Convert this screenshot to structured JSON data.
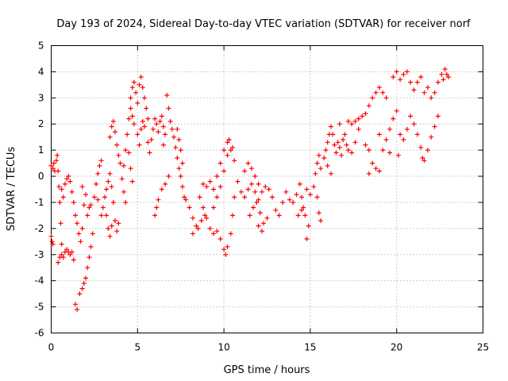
{
  "chart_data": {
    "type": "scatter",
    "title": "Day 193 of 2024, Sidereal Day-to-day VTEC variation (SDTVAR) for receiver norf",
    "xlabel": "GPS time / hours",
    "ylabel": "SDTVAR / TECUs",
    "xlim": [
      0,
      25
    ],
    "ylim": [
      -6,
      5
    ],
    "xticks": [
      0,
      5,
      10,
      15,
      20,
      25
    ],
    "yticks": [
      -6,
      -5,
      -4,
      -3,
      -2,
      -1,
      0,
      1,
      2,
      3,
      4,
      5
    ],
    "grid": true,
    "marker": "plus",
    "marker_color": "#ff0000",
    "series": [
      {
        "name": "norf",
        "points": [
          [
            0.0,
            -2.3
          ],
          [
            0.05,
            -2.5
          ],
          [
            0.1,
            -2.6
          ],
          [
            0.0,
            0.4
          ],
          [
            0.1,
            0.3
          ],
          [
            0.15,
            0.5
          ],
          [
            0.2,
            0.2
          ],
          [
            0.3,
            0.6
          ],
          [
            0.35,
            0.8
          ],
          [
            0.4,
            0.2
          ],
          [
            0.45,
            -0.4
          ],
          [
            0.5,
            -1.0
          ],
          [
            0.55,
            -1.8
          ],
          [
            0.6,
            -2.6
          ],
          [
            0.4,
            -3.3
          ],
          [
            0.5,
            -3.1
          ],
          [
            0.6,
            -3.0
          ],
          [
            0.7,
            -3.1
          ],
          [
            0.8,
            -2.9
          ],
          [
            0.9,
            -2.8
          ],
          [
            1.0,
            -2.9
          ],
          [
            1.1,
            -3.0
          ],
          [
            1.2,
            -2.9
          ],
          [
            1.3,
            -3.2
          ],
          [
            0.6,
            -0.5
          ],
          [
            0.7,
            -0.8
          ],
          [
            0.8,
            -0.3
          ],
          [
            0.9,
            -0.1
          ],
          [
            1.0,
            0.0
          ],
          [
            1.1,
            -0.2
          ],
          [
            1.2,
            -0.6
          ],
          [
            1.3,
            -1.0
          ],
          [
            1.4,
            -1.5
          ],
          [
            1.5,
            -1.8
          ],
          [
            1.6,
            -2.2
          ],
          [
            1.7,
            -2.5
          ],
          [
            1.8,
            -2.0
          ],
          [
            1.4,
            -4.9
          ],
          [
            1.5,
            -5.1
          ],
          [
            1.65,
            -4.5
          ],
          [
            1.8,
            -4.3
          ],
          [
            1.9,
            -4.1
          ],
          [
            2.0,
            -3.9
          ],
          [
            2.1,
            -3.5
          ],
          [
            2.2,
            -3.1
          ],
          [
            2.3,
            -2.7
          ],
          [
            2.4,
            -2.2
          ],
          [
            2.2,
            -1.2
          ],
          [
            2.0,
            -0.7
          ],
          [
            1.8,
            -0.4
          ],
          [
            1.9,
            -1.1
          ],
          [
            2.1,
            -1.5
          ],
          [
            2.3,
            -1.1
          ],
          [
            2.5,
            -0.8
          ],
          [
            2.6,
            -0.3
          ],
          [
            2.7,
            0.1
          ],
          [
            2.8,
            0.4
          ],
          [
            2.9,
            0.6
          ],
          [
            2.7,
            -0.9
          ],
          [
            2.9,
            -1.5
          ],
          [
            3.0,
            -1.2
          ],
          [
            3.1,
            -0.8
          ],
          [
            3.2,
            -0.5
          ],
          [
            3.3,
            -0.2
          ],
          [
            3.4,
            0.1
          ],
          [
            3.5,
            -0.4
          ],
          [
            3.6,
            -1.0
          ],
          [
            3.7,
            -1.7
          ],
          [
            3.8,
            -2.1
          ],
          [
            3.9,
            -1.8
          ],
          [
            3.2,
            -1.5
          ],
          [
            3.3,
            -2.0
          ],
          [
            3.4,
            -2.3
          ],
          [
            3.5,
            -1.9
          ],
          [
            3.4,
            1.5
          ],
          [
            3.5,
            1.9
          ],
          [
            3.6,
            2.1
          ],
          [
            3.7,
            1.7
          ],
          [
            3.8,
            1.2
          ],
          [
            3.9,
            0.8
          ],
          [
            4.0,
            0.5
          ],
          [
            4.1,
            -0.1
          ],
          [
            4.2,
            -0.6
          ],
          [
            4.3,
            -1.0
          ],
          [
            4.2,
            0.4
          ],
          [
            4.3,
            1.0
          ],
          [
            4.4,
            1.6
          ],
          [
            4.5,
            2.2
          ],
          [
            4.6,
            2.6
          ],
          [
            4.7,
            2.3
          ],
          [
            4.8,
            2.0
          ],
          [
            4.5,
            0.9
          ],
          [
            4.6,
            0.3
          ],
          [
            4.7,
            -0.2
          ],
          [
            4.6,
            3.0
          ],
          [
            4.7,
            3.4
          ],
          [
            4.8,
            3.6
          ],
          [
            4.9,
            3.2
          ],
          [
            5.0,
            2.8
          ],
          [
            5.1,
            3.5
          ],
          [
            5.2,
            3.8
          ],
          [
            5.3,
            3.4
          ],
          [
            5.4,
            3.0
          ],
          [
            5.5,
            2.6
          ],
          [
            5.6,
            2.2
          ],
          [
            5.0,
            1.6
          ],
          [
            5.1,
            1.2
          ],
          [
            5.2,
            1.8
          ],
          [
            5.3,
            2.1
          ],
          [
            5.4,
            1.9
          ],
          [
            5.6,
            1.3
          ],
          [
            5.7,
            0.9
          ],
          [
            5.8,
            1.4
          ],
          [
            5.9,
            1.8
          ],
          [
            6.0,
            2.2
          ],
          [
            6.1,
            2.0
          ],
          [
            6.2,
            1.7
          ],
          [
            6.3,
            2.1
          ],
          [
            6.4,
            2.3
          ],
          [
            6.5,
            1.9
          ],
          [
            6.0,
            -1.5
          ],
          [
            6.1,
            -1.2
          ],
          [
            6.2,
            -0.9
          ],
          [
            6.4,
            -0.5
          ],
          [
            6.6,
            -0.3
          ],
          [
            6.8,
            0.0
          ],
          [
            6.5,
            1.2
          ],
          [
            6.6,
            1.6
          ],
          [
            6.7,
            3.1
          ],
          [
            6.8,
            2.6
          ],
          [
            6.9,
            2.1
          ],
          [
            7.0,
            1.8
          ],
          [
            7.1,
            1.5
          ],
          [
            7.2,
            1.1
          ],
          [
            7.3,
            0.7
          ],
          [
            7.4,
            0.3
          ],
          [
            7.5,
            0.0
          ],
          [
            7.6,
            -0.4
          ],
          [
            7.7,
            -0.8
          ],
          [
            7.3,
            1.8
          ],
          [
            7.4,
            1.4
          ],
          [
            7.5,
            1.0
          ],
          [
            7.6,
            0.5
          ],
          [
            7.8,
            -0.9
          ],
          [
            8.0,
            -1.2
          ],
          [
            8.2,
            -1.6
          ],
          [
            8.4,
            -1.9
          ],
          [
            8.2,
            -2.2
          ],
          [
            8.5,
            -2.0
          ],
          [
            8.7,
            -1.7
          ],
          [
            8.9,
            -1.5
          ],
          [
            8.6,
            -0.8
          ],
          [
            8.8,
            -1.2
          ],
          [
            9.0,
            -1.6
          ],
          [
            9.2,
            -2.0
          ],
          [
            9.4,
            -2.2
          ],
          [
            9.6,
            -2.1
          ],
          [
            9.8,
            -2.4
          ],
          [
            10.0,
            -2.8
          ],
          [
            10.1,
            -3.0
          ],
          [
            10.2,
            -2.7
          ],
          [
            10.4,
            -2.2
          ],
          [
            10.5,
            -1.5
          ],
          [
            10.6,
            -0.8
          ],
          [
            9.4,
            -1.2
          ],
          [
            9.6,
            -0.8
          ],
          [
            9.8,
            -0.4
          ],
          [
            10.0,
            0.2
          ],
          [
            10.2,
            0.8
          ],
          [
            10.4,
            1.0
          ],
          [
            10.6,
            0.6
          ],
          [
            9.6,
            0.0
          ],
          [
            9.8,
            0.5
          ],
          [
            10.0,
            1.0
          ],
          [
            10.2,
            1.3
          ],
          [
            10.3,
            1.4
          ],
          [
            10.5,
            1.1
          ],
          [
            9.0,
            -0.4
          ],
          [
            9.2,
            -0.2
          ],
          [
            9.4,
            -0.5
          ],
          [
            8.8,
            -0.3
          ],
          [
            10.8,
            -0.2
          ],
          [
            11.0,
            -0.6
          ],
          [
            11.2,
            -0.8
          ],
          [
            11.4,
            -0.5
          ],
          [
            11.6,
            -0.3
          ],
          [
            11.8,
            -0.6
          ],
          [
            12.0,
            -0.9
          ],
          [
            11.2,
            0.2
          ],
          [
            11.4,
            0.5
          ],
          [
            11.6,
            0.3
          ],
          [
            11.8,
            0.0
          ],
          [
            12.0,
            -0.3
          ],
          [
            12.2,
            -0.6
          ],
          [
            12.4,
            -0.4
          ],
          [
            12.6,
            -0.5
          ],
          [
            12.8,
            -0.8
          ],
          [
            11.5,
            -1.5
          ],
          [
            11.7,
            -1.2
          ],
          [
            11.9,
            -1.0
          ],
          [
            12.1,
            -1.4
          ],
          [
            12.3,
            -1.8
          ],
          [
            12.5,
            -1.6
          ],
          [
            12.2,
            -2.1
          ],
          [
            12.0,
            -1.9
          ],
          [
            13.0,
            -1.3
          ],
          [
            13.2,
            -1.5
          ],
          [
            13.4,
            -1.0
          ],
          [
            13.6,
            -0.6
          ],
          [
            13.8,
            -0.9
          ],
          [
            14.0,
            -1.0
          ],
          [
            14.2,
            -0.7
          ],
          [
            14.4,
            -0.3
          ],
          [
            14.5,
            -0.8
          ],
          [
            14.6,
            -1.2
          ],
          [
            14.7,
            -1.5
          ],
          [
            14.8,
            -2.4
          ],
          [
            14.9,
            -1.9
          ],
          [
            14.3,
            -1.5
          ],
          [
            14.5,
            -1.3
          ],
          [
            14.8,
            -0.5
          ],
          [
            15.0,
            -0.7
          ],
          [
            15.2,
            -0.4
          ],
          [
            15.4,
            -0.8
          ],
          [
            15.5,
            -1.4
          ],
          [
            15.6,
            -1.7
          ],
          [
            15.3,
            0.1
          ],
          [
            15.4,
            0.5
          ],
          [
            15.5,
            0.8
          ],
          [
            15.6,
            0.3
          ],
          [
            15.8,
            0.7
          ],
          [
            15.9,
            1.0
          ],
          [
            16.0,
            1.3
          ],
          [
            16.1,
            1.6
          ],
          [
            16.2,
            1.9
          ],
          [
            16.3,
            1.6
          ],
          [
            16.4,
            1.2
          ],
          [
            16.5,
            0.9
          ],
          [
            16.6,
            1.3
          ],
          [
            16.7,
            1.1
          ],
          [
            16.8,
            0.8
          ],
          [
            16.9,
            1.4
          ],
          [
            17.0,
            1.6
          ],
          [
            17.1,
            1.2
          ],
          [
            16.0,
            0.4
          ],
          [
            16.2,
            0.1
          ],
          [
            17.2,
            1.0
          ],
          [
            17.4,
            0.9
          ],
          [
            17.6,
            1.3
          ],
          [
            17.8,
            1.8
          ],
          [
            17.4,
            2.0
          ],
          [
            17.6,
            2.1
          ],
          [
            17.8,
            2.2
          ],
          [
            18.0,
            2.3
          ],
          [
            18.2,
            2.4
          ],
          [
            18.4,
            2.7
          ],
          [
            18.6,
            3.0
          ],
          [
            18.8,
            3.2
          ],
          [
            19.0,
            3.4
          ],
          [
            19.2,
            3.2
          ],
          [
            19.4,
            3.0
          ],
          [
            18.2,
            1.2
          ],
          [
            18.4,
            1.0
          ],
          [
            18.6,
            0.5
          ],
          [
            18.8,
            0.3
          ],
          [
            19.0,
            0.2
          ],
          [
            18.4,
            0.1
          ],
          [
            19.2,
            1.0
          ],
          [
            19.4,
            1.4
          ],
          [
            19.6,
            1.8
          ],
          [
            19.8,
            2.2
          ],
          [
            20.0,
            2.5
          ],
          [
            19.8,
            3.8
          ],
          [
            20.0,
            4.0
          ],
          [
            20.2,
            3.7
          ],
          [
            20.4,
            3.9
          ],
          [
            20.6,
            4.0
          ],
          [
            20.8,
            3.6
          ],
          [
            21.0,
            3.3
          ],
          [
            21.2,
            3.6
          ],
          [
            21.4,
            3.8
          ],
          [
            20.2,
            1.6
          ],
          [
            20.4,
            1.4
          ],
          [
            20.6,
            1.8
          ],
          [
            20.8,
            2.3
          ],
          [
            21.0,
            2.0
          ],
          [
            21.2,
            1.6
          ],
          [
            21.4,
            1.1
          ],
          [
            21.5,
            0.7
          ],
          [
            21.6,
            0.6
          ],
          [
            21.8,
            1.0
          ],
          [
            22.0,
            1.5
          ],
          [
            22.2,
            1.9
          ],
          [
            22.4,
            2.3
          ],
          [
            21.6,
            3.2
          ],
          [
            21.8,
            3.4
          ],
          [
            22.0,
            3.0
          ],
          [
            22.2,
            3.2
          ],
          [
            22.4,
            3.6
          ],
          [
            22.6,
            3.9
          ],
          [
            22.8,
            4.1
          ],
          [
            23.0,
            3.8
          ],
          [
            22.7,
            3.7
          ],
          [
            22.9,
            3.9
          ],
          [
            19.0,
            1.6
          ],
          [
            19.6,
            0.9
          ],
          [
            20.1,
            0.8
          ],
          [
            17.2,
            2.1
          ],
          [
            16.7,
            2.0
          ]
        ]
      }
    ]
  }
}
